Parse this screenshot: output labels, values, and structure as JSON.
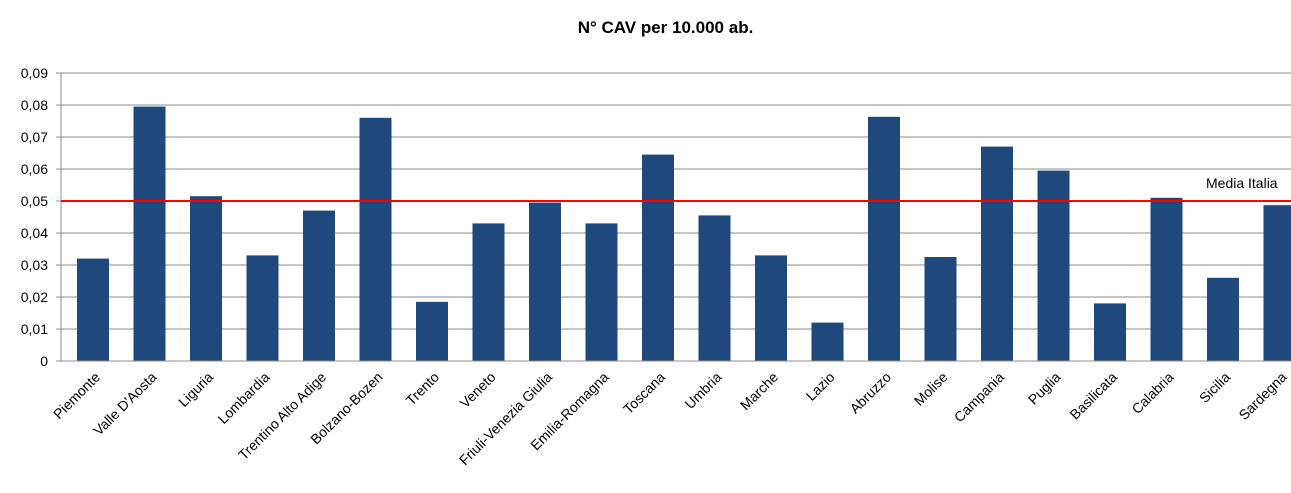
{
  "chart_data": {
    "type": "bar",
    "title": "N° CAV per 10.000 ab.",
    "xlabel": "",
    "ylabel": "",
    "ylim": [
      0,
      0.09
    ],
    "yticks": [
      "0",
      "0,01",
      "0,02",
      "0,03",
      "0,04",
      "0,05",
      "0,06",
      "0,07",
      "0,08",
      "0,09"
    ],
    "grid": true,
    "categories": [
      "Piemonte",
      "Valle D'Aosta",
      "Liguria",
      "Lombardia",
      "Trentino Alto Adige",
      "Bolzano-Bozen",
      "Trento",
      "Veneto",
      "Friuli-Venezia Giulia",
      "Emilia-Romagna",
      "Toscana",
      "Umbria",
      "Marche",
      "Lazio",
      "Abruzzo",
      "Molise",
      "Campania",
      "Puglia",
      "Basilicata",
      "Calabria",
      "Sicilia",
      "Sardegna"
    ],
    "values": [
      0.032,
      0.0795,
      0.0515,
      0.033,
      0.047,
      0.076,
      0.0185,
      0.043,
      0.0495,
      0.043,
      0.0645,
      0.0455,
      0.033,
      0.012,
      0.0763,
      0.0325,
      0.067,
      0.0595,
      0.018,
      0.051,
      0.026,
      0.0487
    ],
    "bar_color": "#1f497d",
    "reference_line": {
      "label": "Media Italia",
      "value": 0.05,
      "color": "#ff0000"
    }
  }
}
